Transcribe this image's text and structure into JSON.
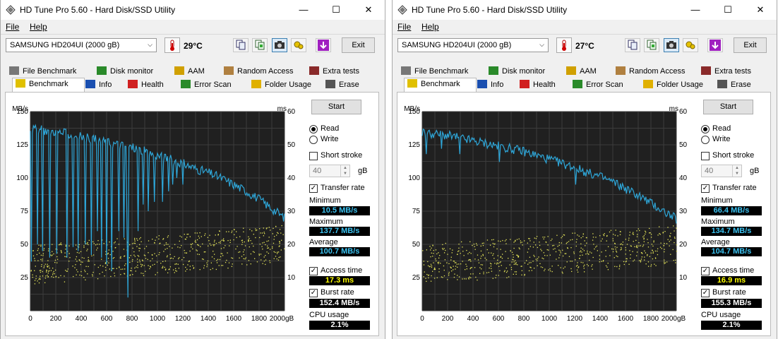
{
  "windows": [
    {
      "title": "HD Tune Pro 5.60 - Hard Disk/SSD Utility",
      "menu": [
        "File",
        "Help"
      ],
      "drive": "SAMSUNG HD204UI (2000 gB)",
      "temperature": "29°C",
      "exit_label": "Exit",
      "tabs_row1": [
        "File Benchmark",
        "Disk monitor",
        "AAM",
        "Random Access",
        "Extra tests"
      ],
      "tabs_row2": [
        "Benchmark",
        "Info",
        "Health",
        "Error Scan",
        "Folder Usage",
        "Erase"
      ],
      "active_tab": "Benchmark",
      "start_label": "Start",
      "read_label": "Read",
      "write_label": "Write",
      "mode": "Read",
      "short_stroke_label": "Short stroke",
      "short_stroke_checked": false,
      "short_stroke_value": "40",
      "short_stroke_unit": "gB",
      "transfer_rate_label": "Transfer rate",
      "transfer_rate_checked": true,
      "minimum_label": "Minimum",
      "minimum": "10.5 MB/s",
      "maximum_label": "Maximum",
      "maximum": "137.7 MB/s",
      "average_label": "Average",
      "average": "100.7 MB/s",
      "access_time_label": "Access time",
      "access_time_checked": true,
      "access_time": "17.3 ms",
      "burst_rate_label": "Burst rate",
      "burst_rate_checked": true,
      "burst_rate": "152.4 MB/s",
      "cpu_usage_label": "CPU usage",
      "cpu_usage": "2.1%",
      "chart_data": {
        "type": "line",
        "y_left_label": "MB/s",
        "y_right_label": "ms",
        "x_unit": "gB",
        "ylim_left": [
          0,
          150
        ],
        "ylim_right": [
          0,
          60
        ],
        "xlim": [
          0,
          2000
        ],
        "y_left_ticks": [
          "25",
          "50",
          "75",
          "100",
          "125",
          "150"
        ],
        "y_right_ticks": [
          "10",
          "20",
          "30",
          "40",
          "50",
          "60"
        ],
        "x_ticks": [
          "0",
          "200",
          "400",
          "600",
          "800",
          "1000",
          "1200",
          "1400",
          "1600",
          "1800",
          "2000gB"
        ],
        "grid": true,
        "series": [
          {
            "color": "#2ea6d8",
            "x": [
              0,
              100,
              200,
              300,
              400,
              500,
              600,
              700,
              800,
              900,
              1000,
              1100,
              1200,
              1300,
              1400,
              1500,
              1600,
              1700,
              1800,
              1900,
              2000
            ],
            "y": [
              137,
              136,
              135,
              133,
              131,
              129,
              127,
              125,
              123,
              120,
              117,
              114,
              111,
              107,
              104,
              100,
              95,
              90,
              84,
              77,
              70
            ],
            "dips": [
              [
                10,
                37
              ],
              [
                60,
                50
              ],
              [
                100,
                45
              ],
              [
                150,
                40
              ],
              [
                210,
                43
              ],
              [
                290,
                40
              ],
              [
                340,
                48
              ],
              [
                380,
                45
              ],
              [
                430,
                50
              ],
              [
                480,
                42
              ],
              [
                530,
                60
              ],
              [
                560,
                40
              ],
              [
                600,
                35
              ],
              [
                640,
                30
              ],
              [
                700,
                60
              ],
              [
                740,
                55
              ],
              [
                760,
                68
              ],
              [
                770,
                10
              ],
              [
                850,
                60
              ],
              [
                890,
                80
              ],
              [
                930,
                75
              ],
              [
                980,
                82
              ],
              [
                1040,
                82
              ],
              [
                1090,
                90
              ],
              [
                1120,
                95
              ],
              [
                1150,
                100
              ],
              [
                1200,
                95
              ]
            ]
          }
        ],
        "access_time_scatter": {
          "color": "#e8e85a",
          "description_band_ms_start": [
            8,
            20
          ],
          "description_band_ms_end": [
            14,
            26
          ]
        }
      }
    },
    {
      "title": "HD Tune Pro 5.60 - Hard Disk/SSD Utility",
      "menu": [
        "File",
        "Help"
      ],
      "drive": "SAMSUNG HD204UI (2000 gB)",
      "temperature": "27°C",
      "exit_label": "Exit",
      "tabs_row1": [
        "File Benchmark",
        "Disk monitor",
        "AAM",
        "Random Access",
        "Extra tests"
      ],
      "tabs_row2": [
        "Benchmark",
        "Info",
        "Health",
        "Error Scan",
        "Folder Usage",
        "Erase"
      ],
      "active_tab": "Benchmark",
      "start_label": "Start",
      "read_label": "Read",
      "write_label": "Write",
      "mode": "Read",
      "short_stroke_label": "Short stroke",
      "short_stroke_checked": false,
      "short_stroke_value": "40",
      "short_stroke_unit": "gB",
      "transfer_rate_label": "Transfer rate",
      "transfer_rate_checked": true,
      "minimum_label": "Minimum",
      "minimum": "66.4 MB/s",
      "maximum_label": "Maximum",
      "maximum": "134.7 MB/s",
      "average_label": "Average",
      "average": "104.7 MB/s",
      "access_time_label": "Access time",
      "access_time_checked": true,
      "access_time": "16.9 ms",
      "burst_rate_label": "Burst rate",
      "burst_rate_checked": true,
      "burst_rate": "155.3 MB/s",
      "cpu_usage_label": "CPU usage",
      "cpu_usage": "2.1%",
      "chart_data": {
        "type": "line",
        "y_left_label": "MB/s",
        "y_right_label": "ms",
        "x_unit": "gB",
        "ylim_left": [
          0,
          150
        ],
        "ylim_right": [
          0,
          60
        ],
        "xlim": [
          0,
          2000
        ],
        "y_left_ticks": [
          "25",
          "50",
          "75",
          "100",
          "125",
          "150"
        ],
        "y_right_ticks": [
          "10",
          "20",
          "30",
          "40",
          "50",
          "60"
        ],
        "x_ticks": [
          "0",
          "200",
          "400",
          "600",
          "800",
          "1000",
          "1200",
          "1400",
          "1600",
          "1800",
          "2000gB"
        ],
        "grid": true,
        "series": [
          {
            "color": "#2ea6d8",
            "x": [
              0,
              100,
              200,
              300,
              400,
              500,
              600,
              700,
              800,
              900,
              1000,
              1100,
              1200,
              1300,
              1400,
              1500,
              1600,
              1700,
              1800,
              1900,
              2000
            ],
            "y": [
              134,
              133,
              132,
              130,
              128,
              126,
              124,
              122,
              120,
              117,
              114,
              111,
              108,
              104,
              101,
              97,
              92,
              87,
              81,
              75,
              69
            ],
            "dips": [
              [
                30,
                118
              ],
              [
                150,
                122
              ],
              [
                300,
                118
              ],
              [
                610,
                112
              ],
              [
                1210,
                95
              ]
            ]
          }
        ],
        "access_time_scatter": {
          "color": "#e8e85a",
          "description_band_ms_start": [
            8,
            20
          ],
          "description_band_ms_end": [
            14,
            26
          ]
        }
      }
    }
  ]
}
